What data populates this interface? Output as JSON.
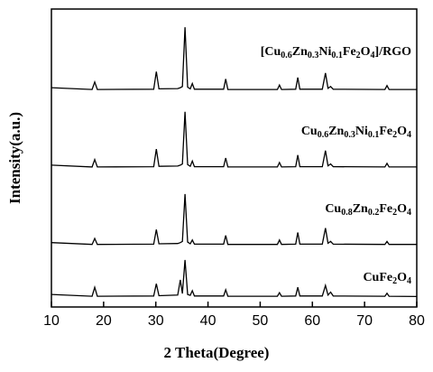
{
  "chart_data": {
    "type": "line",
    "xlabel": "2 Theta(Degree)",
    "ylabel": "Intensity(a.u.)",
    "x": [
      10,
      17.8,
      18.3,
      18.8,
      29.6,
      30.1,
      30.6,
      34.2,
      34.7,
      35.1,
      35.6,
      36.1,
      36.6,
      37.0,
      37.4,
      43.0,
      43.4,
      43.8,
      53.3,
      53.7,
      54.1,
      56.8,
      57.2,
      57.6,
      61.9,
      62.5,
      63.0,
      63.5,
      64.0,
      73.9,
      74.3,
      74.7,
      80
    ],
    "series": [
      {
        "name": "CuFe2O4",
        "color": "#000000",
        "values": [
          4.2,
          3.6,
          6.6,
          3.6,
          3.7,
          7.8,
          3.8,
          4.0,
          9.1,
          4.5,
          15.8,
          4.2,
          3.9,
          5.5,
          3.7,
          3.7,
          5.8,
          3.6,
          3.6,
          4.8,
          3.6,
          3.7,
          6.6,
          3.7,
          3.7,
          7.2,
          4.0,
          5.0,
          3.7,
          3.6,
          4.6,
          3.6,
          3.5
        ]
      },
      {
        "name": "Cu0.8Zn0.2Fe2O4",
        "color": "#000000",
        "values": [
          21.6,
          21,
          23,
          21,
          21.1,
          26,
          21.2,
          21.3,
          21.6,
          22.0,
          37.9,
          21.8,
          21.2,
          22.5,
          21.1,
          21.1,
          24,
          21,
          21,
          22.5,
          21,
          21.1,
          25,
          21.1,
          21.1,
          26.5,
          21.4,
          22,
          21.1,
          21,
          22,
          21,
          21
        ]
      },
      {
        "name": "Cu0.6Zn0.3Ni0.1Fe2O4",
        "color": "#000000",
        "values": [
          47.6,
          47,
          49.5,
          47,
          47.1,
          53,
          47.2,
          47.3,
          47.6,
          48.0,
          65.5,
          47.8,
          47.2,
          49,
          47.1,
          47.1,
          50,
          47,
          47,
          48.5,
          47,
          47.1,
          51,
          47.1,
          47.1,
          52.5,
          47.4,
          48,
          47.1,
          47,
          48.2,
          47,
          47
        ]
      },
      {
        "name": "[Cu0.6Zn0.3Ni0.1Fe2O4]/RGO",
        "color": "#000000",
        "values": [
          73.6,
          73,
          75.5,
          73,
          73.1,
          79,
          73.2,
          73.3,
          73.6,
          74.0,
          93.9,
          73.8,
          73.2,
          75,
          73.1,
          73.1,
          76.5,
          73,
          73,
          74.5,
          73,
          73.1,
          77,
          73.1,
          73.1,
          78.5,
          73.4,
          74,
          73.1,
          73,
          74.3,
          73,
          73
        ]
      }
    ],
    "xlim": [
      10,
      80
    ],
    "xticks": [
      10,
      20,
      30,
      40,
      50,
      60,
      70,
      80
    ],
    "ylim": [
      0,
      100
    ]
  }
}
